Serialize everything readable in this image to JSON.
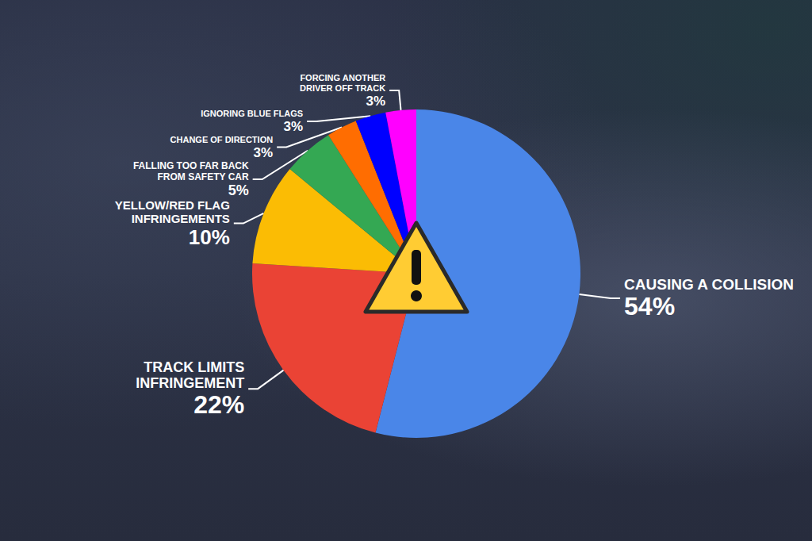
{
  "chart_data": {
    "type": "pie",
    "categories": [
      "CAUSING A COLLISION",
      "TRACK LIMITS INFRINGEMENT",
      "YELLOW/RED FLAG INFRINGEMENTS",
      "FALLING TOO FAR BACK FROM SAFETY CAR",
      "CHANGE OF DIRECTION",
      "IGNORING BLUE FLAGS",
      "FORCING ANOTHER DRIVER OFF TRACK"
    ],
    "values": [
      54,
      22,
      10,
      5,
      3,
      3,
      3
    ],
    "value_labels": [
      "54%",
      "22%",
      "10%",
      "5%",
      "3%",
      "3%",
      "3%"
    ],
    "colors": [
      "#4a86e8",
      "#ea4335",
      "#fbbc04",
      "#34a853",
      "#ff6d01",
      "#0000ff",
      "#ff00ff"
    ],
    "data_labels": true
  }
}
